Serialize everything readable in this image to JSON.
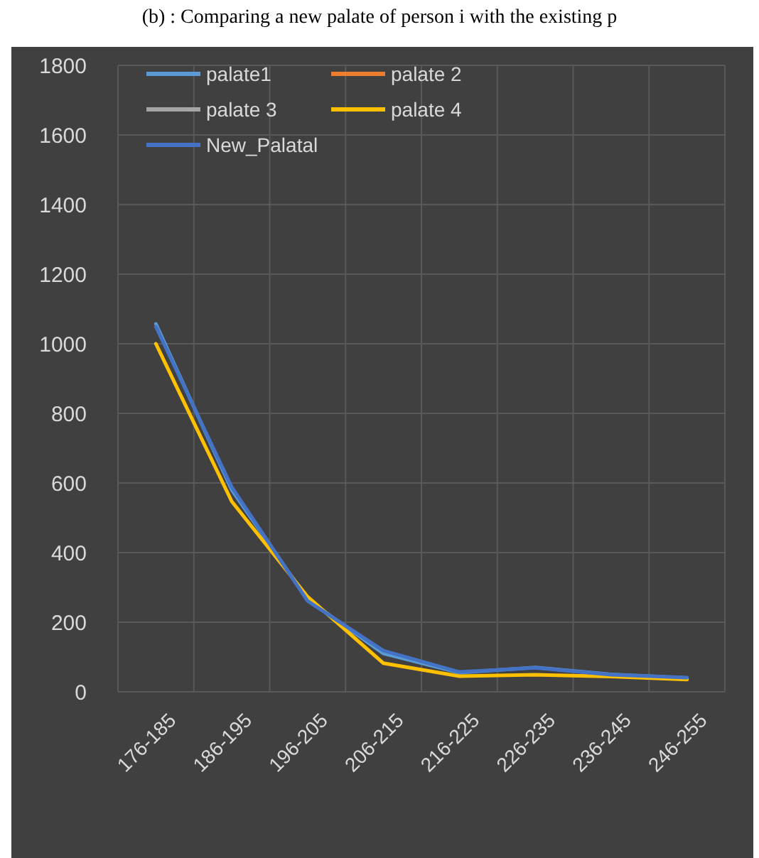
{
  "chart_data": {
    "type": "line",
    "title": "(b) : Comparing a new palate of person i with the existing p",
    "categories": [
      "176-185",
      "186-195",
      "196-205",
      "206-215",
      "216-225",
      "226-235",
      "236-245",
      "246-255"
    ],
    "series": [
      {
        "name": "palate1",
        "color": "#5b9bd5",
        "values": [
          1057,
          580,
          265,
          110,
          55,
          70,
          50,
          40
        ]
      },
      {
        "name": "palate 2",
        "color": "#ed7d31",
        "values": [
          null,
          null,
          null,
          null,
          null,
          null,
          null,
          null
        ]
      },
      {
        "name": "palate 3",
        "color": "#a5a5a5",
        "values": [
          null,
          null,
          null,
          null,
          null,
          null,
          null,
          null
        ]
      },
      {
        "name": "palate 4",
        "color": "#ffc000",
        "values": [
          1000,
          547,
          273,
          82,
          45,
          49,
          44,
          35
        ]
      },
      {
        "name": "New_Palatal",
        "color": "#4472c4",
        "values": [
          1049,
          588,
          261,
          118,
          57,
          69,
          49,
          41
        ]
      }
    ],
    "ylim": [
      0,
      1800
    ],
    "yticks": [
      0,
      200,
      400,
      600,
      800,
      1000,
      1200,
      1400,
      1600,
      1800
    ],
    "grid": true,
    "legend": "top left",
    "marker": "none",
    "line_style": "solid"
  }
}
